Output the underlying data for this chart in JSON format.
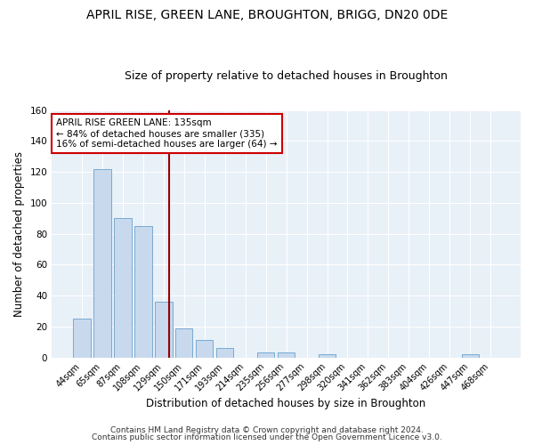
{
  "title1": "APRIL RISE, GREEN LANE, BROUGHTON, BRIGG, DN20 0DE",
  "title2": "Size of property relative to detached houses in Broughton",
  "xlabel": "Distribution of detached houses by size in Broughton",
  "ylabel": "Number of detached properties",
  "categories": [
    "44sqm",
    "65sqm",
    "87sqm",
    "108sqm",
    "129sqm",
    "150sqm",
    "171sqm",
    "193sqm",
    "214sqm",
    "235sqm",
    "256sqm",
    "277sqm",
    "298sqm",
    "320sqm",
    "341sqm",
    "362sqm",
    "383sqm",
    "404sqm",
    "426sqm",
    "447sqm",
    "468sqm"
  ],
  "values": [
    25,
    122,
    90,
    85,
    36,
    19,
    11,
    6,
    0,
    3,
    3,
    0,
    2,
    0,
    0,
    0,
    0,
    0,
    0,
    2,
    0
  ],
  "bar_color": "#c8d9ee",
  "bar_edge_color": "#7aaad0",
  "bar_width": 0.85,
  "ylim": [
    0,
    160
  ],
  "yticks": [
    0,
    20,
    40,
    60,
    80,
    100,
    120,
    140,
    160
  ],
  "vline_color": "#990000",
  "annotation_text": "APRIL RISE GREEN LANE: 135sqm\n← 84% of detached houses are smaller (335)\n16% of semi-detached houses are larger (64) →",
  "annotation_box_color": "#cc0000",
  "annotation_fontsize": 7.5,
  "footer1": "Contains HM Land Registry data © Crown copyright and database right 2024.",
  "footer2": "Contains public sector information licensed under the Open Government Licence v3.0.",
  "background_color": "#ffffff",
  "plot_bg_color": "#e8f0f8",
  "title1_fontsize": 10,
  "title2_fontsize": 9,
  "xlabel_fontsize": 8.5,
  "ylabel_fontsize": 8.5,
  "footer_fontsize": 6.5,
  "tick_fontsize": 7
}
